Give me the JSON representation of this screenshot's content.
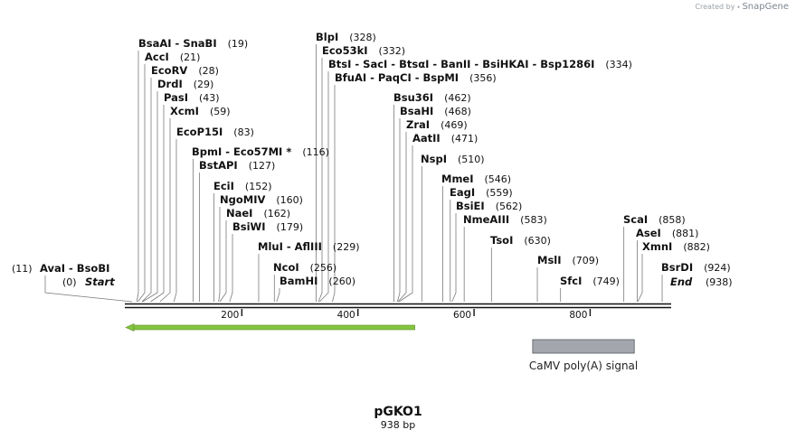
{
  "credit": {
    "prefix": "Created by",
    "brand": "SnapGene"
  },
  "plasmid": {
    "name": "pGKO1",
    "size": "938 bp"
  },
  "sequence": {
    "length": 938,
    "ticks": [
      200,
      400,
      600,
      800
    ]
  },
  "markers": {
    "start": {
      "pos": "(0)",
      "label": "Start"
    },
    "end": {
      "pos": "(938)",
      "label": "End"
    }
  },
  "sites": [
    {
      "label": "AvaI  -  BsoBI",
      "pos": "(11)",
      "bp": 11
    },
    {
      "label": "BsaAI  -  SnaBI",
      "pos": "(19)",
      "bp": 19
    },
    {
      "label": "AccI",
      "pos": "(21)",
      "bp": 21
    },
    {
      "label": "EcoRV",
      "pos": "(28)",
      "bp": 28
    },
    {
      "label": "DrdI",
      "pos": "(29)",
      "bp": 29
    },
    {
      "label": "PasI",
      "pos": "(43)",
      "bp": 43
    },
    {
      "label": "XcmI",
      "pos": "(59)",
      "bp": 59
    },
    {
      "label": "EcoP15I",
      "pos": "(83)",
      "bp": 83
    },
    {
      "label": "BpmI  -  Eco57MI *",
      "pos": "(116)",
      "bp": 116
    },
    {
      "label": "BstAPI",
      "pos": "(127)",
      "bp": 127
    },
    {
      "label": "EciI",
      "pos": "(152)",
      "bp": 152
    },
    {
      "label": "NgoMIV",
      "pos": "(160)",
      "bp": 160
    },
    {
      "label": "NaeI",
      "pos": "(162)",
      "bp": 162
    },
    {
      "label": "BsiWI",
      "pos": "(179)",
      "bp": 179
    },
    {
      "label": "MluI  -  AflIII",
      "pos": "(229)",
      "bp": 229
    },
    {
      "label": "NcoI",
      "pos": "(256)",
      "bp": 256
    },
    {
      "label": "BamHI",
      "pos": "(260)",
      "bp": 260
    },
    {
      "label": "BlpI",
      "pos": "(328)",
      "bp": 328
    },
    {
      "label": "Eco53kI",
      "pos": "(332)",
      "bp": 332
    },
    {
      "label": "BtsI  -  SacI  -  BtsαI  -  BanII  -  BsiHKAI  -  Bsp1286I",
      "pos": "(334)",
      "bp": 334
    },
    {
      "label": "BfuAI  -  PaqCI  -  BspMI",
      "pos": "(356)",
      "bp": 356
    },
    {
      "label": "Bsu36I",
      "pos": "(462)",
      "bp": 462
    },
    {
      "label": "BsaHI",
      "pos": "(468)",
      "bp": 468
    },
    {
      "label": "ZraI",
      "pos": "(469)",
      "bp": 469
    },
    {
      "label": "AatII",
      "pos": "(471)",
      "bp": 471
    },
    {
      "label": "NspI",
      "pos": "(510)",
      "bp": 510
    },
    {
      "label": "MmeI",
      "pos": "(546)",
      "bp": 546
    },
    {
      "label": "EagI",
      "pos": "(559)",
      "bp": 559
    },
    {
      "label": "BsiEI",
      "pos": "(562)",
      "bp": 562
    },
    {
      "label": "NmeAIII",
      "pos": "(583)",
      "bp": 583
    },
    {
      "label": "TsoI",
      "pos": "(630)",
      "bp": 630
    },
    {
      "label": "MslI",
      "pos": "(709)",
      "bp": 709
    },
    {
      "label": "SfcI",
      "pos": "(749)",
      "bp": 749
    },
    {
      "label": "ScaI",
      "pos": "(858)",
      "bp": 858
    },
    {
      "label": "AseI",
      "pos": "(881)",
      "bp": 881
    },
    {
      "label": "XmnI",
      "pos": "(882)",
      "bp": 882
    },
    {
      "label": "BsrDI",
      "pos": "(924)",
      "bp": 924
    }
  ],
  "features": [
    {
      "type": "arrow",
      "from": 0,
      "to": 498,
      "direction": "reverse",
      "color": "#84c440"
    },
    {
      "type": "box",
      "from": 701,
      "to": 876,
      "color": "#a3a7ad",
      "label": "CaMV poly(A) signal"
    }
  ]
}
